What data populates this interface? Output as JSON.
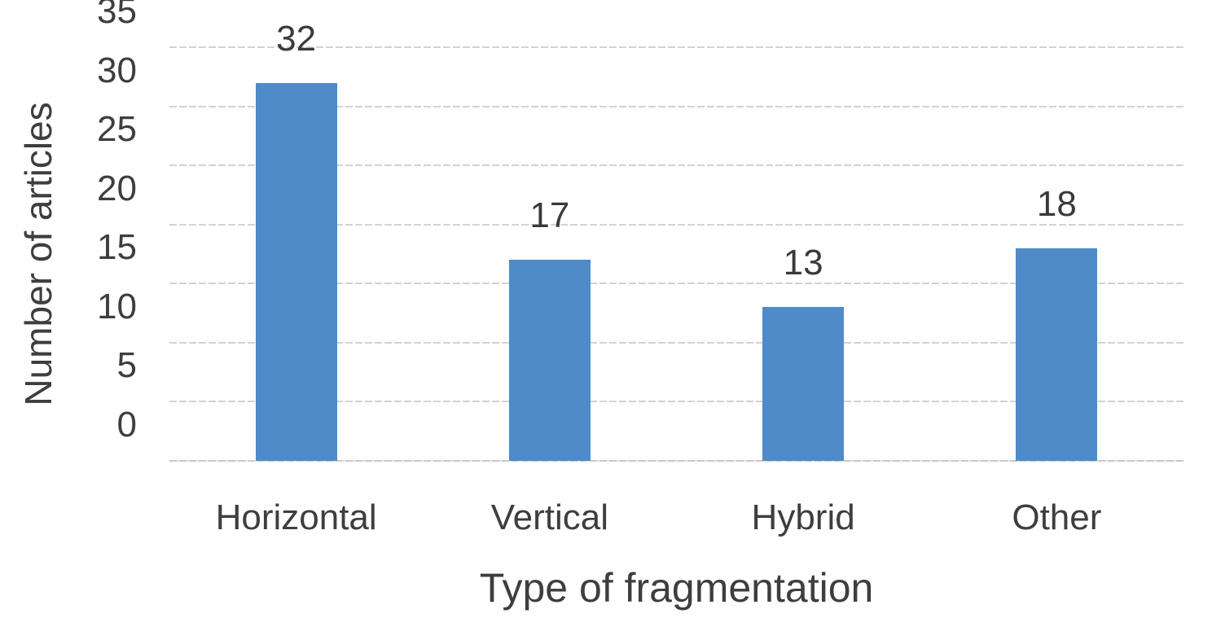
{
  "chart_data": {
    "type": "bar",
    "categories": [
      "Horizontal",
      "Vertical",
      "Hybrid",
      "Other"
    ],
    "values": [
      32,
      17,
      13,
      18
    ],
    "data_labels": [
      "32",
      "17",
      "13",
      "18"
    ],
    "xlabel": "Type of fragmentation",
    "ylabel": "Number of articles",
    "yticks": [
      0,
      5,
      10,
      15,
      20,
      25,
      30,
      35
    ],
    "ylim": [
      0,
      35
    ],
    "grid": true,
    "legend_position": "none",
    "colors": {
      "bar": "#4e8bc8",
      "gridline": "#d3d3d3",
      "text": "#3e3e3e"
    }
  }
}
